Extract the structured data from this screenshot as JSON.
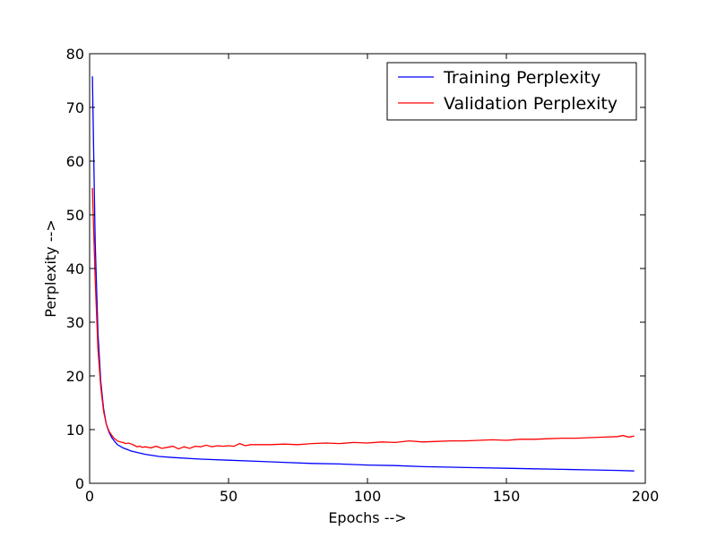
{
  "chart_data": {
    "type": "line",
    "xlabel": "Epochs -->",
    "ylabel": "Perplexity -->",
    "xlim": [
      0,
      200
    ],
    "ylim": [
      0,
      80
    ],
    "xticks": [
      0,
      50,
      100,
      150,
      200
    ],
    "yticks": [
      0,
      10,
      20,
      30,
      40,
      50,
      60,
      70,
      80
    ],
    "grid": false,
    "legend_position": "top-right",
    "series": [
      {
        "name": "Training Perplexity",
        "color": "#0000ff",
        "points": [
          [
            1,
            75.8
          ],
          [
            2,
            45
          ],
          [
            3,
            28
          ],
          [
            4,
            19
          ],
          [
            5,
            14
          ],
          [
            6,
            11
          ],
          [
            7,
            9.5
          ],
          [
            8,
            8.5
          ],
          [
            9,
            7.8
          ],
          [
            10,
            7.2
          ],
          [
            12,
            6.6
          ],
          [
            15,
            6.0
          ],
          [
            20,
            5.4
          ],
          [
            25,
            5.0
          ],
          [
            30,
            4.8
          ],
          [
            40,
            4.5
          ],
          [
            50,
            4.3
          ],
          [
            60,
            4.1
          ],
          [
            70,
            3.9
          ],
          [
            80,
            3.7
          ],
          [
            90,
            3.6
          ],
          [
            100,
            3.4
          ],
          [
            110,
            3.3
          ],
          [
            120,
            3.1
          ],
          [
            130,
            3.0
          ],
          [
            140,
            2.9
          ],
          [
            150,
            2.8
          ],
          [
            160,
            2.7
          ],
          [
            170,
            2.6
          ],
          [
            180,
            2.5
          ],
          [
            190,
            2.4
          ],
          [
            196,
            2.3
          ]
        ]
      },
      {
        "name": "Validation Perplexity",
        "color": "#ff0000",
        "points": [
          [
            1,
            55
          ],
          [
            2,
            38
          ],
          [
            3,
            25
          ],
          [
            4,
            18
          ],
          [
            5,
            13.5
          ],
          [
            6,
            11
          ],
          [
            7,
            9.7
          ],
          [
            8,
            8.9
          ],
          [
            9,
            8.3
          ],
          [
            10,
            7.9
          ],
          [
            11,
            7.7
          ],
          [
            12,
            7.6
          ],
          [
            13,
            7.4
          ],
          [
            14,
            7.5
          ],
          [
            15,
            7.3
          ],
          [
            16,
            7.1
          ],
          [
            17,
            6.8
          ],
          [
            18,
            6.9
          ],
          [
            19,
            6.7
          ],
          [
            20,
            6.8
          ],
          [
            22,
            6.6
          ],
          [
            24,
            6.9
          ],
          [
            26,
            6.5
          ],
          [
            28,
            6.7
          ],
          [
            30,
            6.9
          ],
          [
            32,
            6.4
          ],
          [
            34,
            6.8
          ],
          [
            36,
            6.5
          ],
          [
            38,
            6.9
          ],
          [
            40,
            6.8
          ],
          [
            42,
            7.1
          ],
          [
            44,
            6.8
          ],
          [
            46,
            7.0
          ],
          [
            48,
            6.9
          ],
          [
            50,
            7.0
          ],
          [
            52,
            6.9
          ],
          [
            54,
            7.4
          ],
          [
            56,
            7.0
          ],
          [
            58,
            7.2
          ],
          [
            60,
            7.2
          ],
          [
            65,
            7.2
          ],
          [
            70,
            7.3
          ],
          [
            75,
            7.2
          ],
          [
            80,
            7.4
          ],
          [
            85,
            7.5
          ],
          [
            90,
            7.4
          ],
          [
            95,
            7.6
          ],
          [
            100,
            7.5
          ],
          [
            105,
            7.7
          ],
          [
            110,
            7.6
          ],
          [
            115,
            7.9
          ],
          [
            120,
            7.7
          ],
          [
            125,
            7.8
          ],
          [
            130,
            7.9
          ],
          [
            135,
            7.9
          ],
          [
            140,
            8.0
          ],
          [
            145,
            8.1
          ],
          [
            150,
            8.0
          ],
          [
            155,
            8.2
          ],
          [
            160,
            8.2
          ],
          [
            165,
            8.3
          ],
          [
            170,
            8.4
          ],
          [
            175,
            8.4
          ],
          [
            180,
            8.5
          ],
          [
            185,
            8.6
          ],
          [
            190,
            8.7
          ],
          [
            192,
            8.9
          ],
          [
            194,
            8.6
          ],
          [
            196,
            8.8
          ]
        ]
      }
    ]
  }
}
